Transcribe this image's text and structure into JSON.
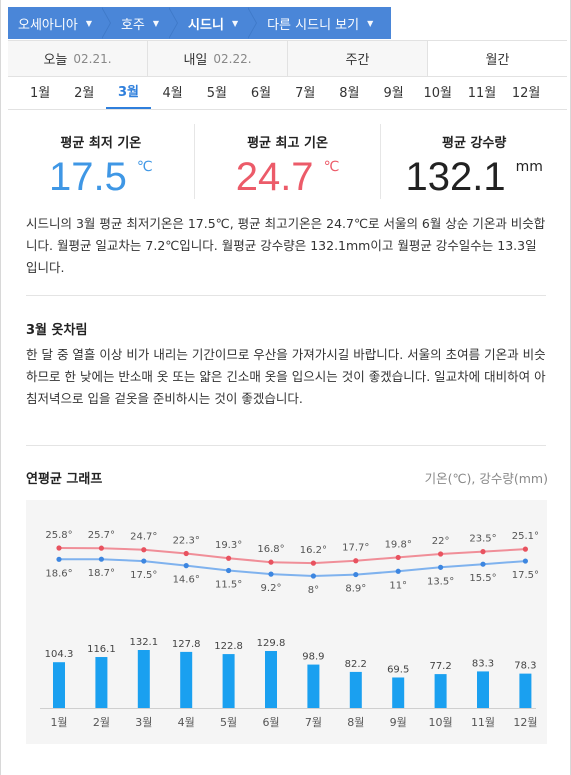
{
  "breadcrumb": [
    {
      "label": "오세아니아",
      "bold": false
    },
    {
      "label": "호주",
      "bold": false
    },
    {
      "label": "시드니",
      "bold": true
    },
    {
      "label": "다른 시드니 보기",
      "bold": false
    }
  ],
  "day_tabs": [
    {
      "label": "오늘",
      "date": "02.21."
    },
    {
      "label": "내일",
      "date": "02.22."
    },
    {
      "label": "주간",
      "date": ""
    },
    {
      "label": "월간",
      "date": ""
    }
  ],
  "months": [
    "1월",
    "2월",
    "3월",
    "4월",
    "5월",
    "6월",
    "7월",
    "8월",
    "9월",
    "10월",
    "11월",
    "12월"
  ],
  "selected_month": "3월",
  "summary": {
    "min": {
      "label": "평균 최저 기온",
      "value": "17.5",
      "unit": "℃"
    },
    "max": {
      "label": "평균 최고 기온",
      "value": "24.7",
      "unit": "℃"
    },
    "rain": {
      "label": "평균 강수량",
      "value": "132.1",
      "unit": "mm"
    }
  },
  "description": "시드니의 3월 평균 최저기온은 17.5℃, 평균 최고기온은 24.7℃로 서울의 6월 상순 기온과 비슷합니다. 월평균 일교차는 7.2℃입니다. 월평균 강수량은 132.1mm이고 월평균 강수일수는 13.3일입니다.",
  "clothing": {
    "title": "3월 옷차림",
    "text": "한 달 중 열흘 이상 비가 내리는 기간이므로 우산을 가져가시길 바랍니다. 서울의 초여름 기온과 비슷하므로 한 낮에는 반소매 옷 또는 얇은 긴소매 옷을 입으시는 것이 좋겠습니다. 일교차에 대비하여 아침저녁으로 입을 겉옷을 준비하시는 것이 좋겠습니다."
  },
  "graph": {
    "title": "연평균 그래프",
    "unit_note": "기온(℃), 강수량(mm)"
  },
  "colors": {
    "accent": "#2f7fdc",
    "max_line": "#f08e98",
    "min_line": "#7fb2ee",
    "bar": "#1aa0f0"
  },
  "chart_data": {
    "type": "line+bar",
    "categories": [
      "1월",
      "2월",
      "3월",
      "4월",
      "5월",
      "6월",
      "7월",
      "8월",
      "9월",
      "10월",
      "11월",
      "12월"
    ],
    "max_temp": [
      25.8,
      25.7,
      24.7,
      22.3,
      19.3,
      16.8,
      16.2,
      17.7,
      19.8,
      22,
      23.5,
      25.1
    ],
    "min_temp": [
      18.6,
      18.7,
      17.5,
      14.6,
      11.5,
      9.2,
      8,
      8.9,
      11,
      13.5,
      15.5,
      17.5
    ],
    "precip": [
      104.3,
      116.1,
      132.1,
      127.8,
      122.8,
      129.8,
      98.9,
      82.2,
      69.5,
      77.2,
      83.3,
      78.3
    ]
  }
}
